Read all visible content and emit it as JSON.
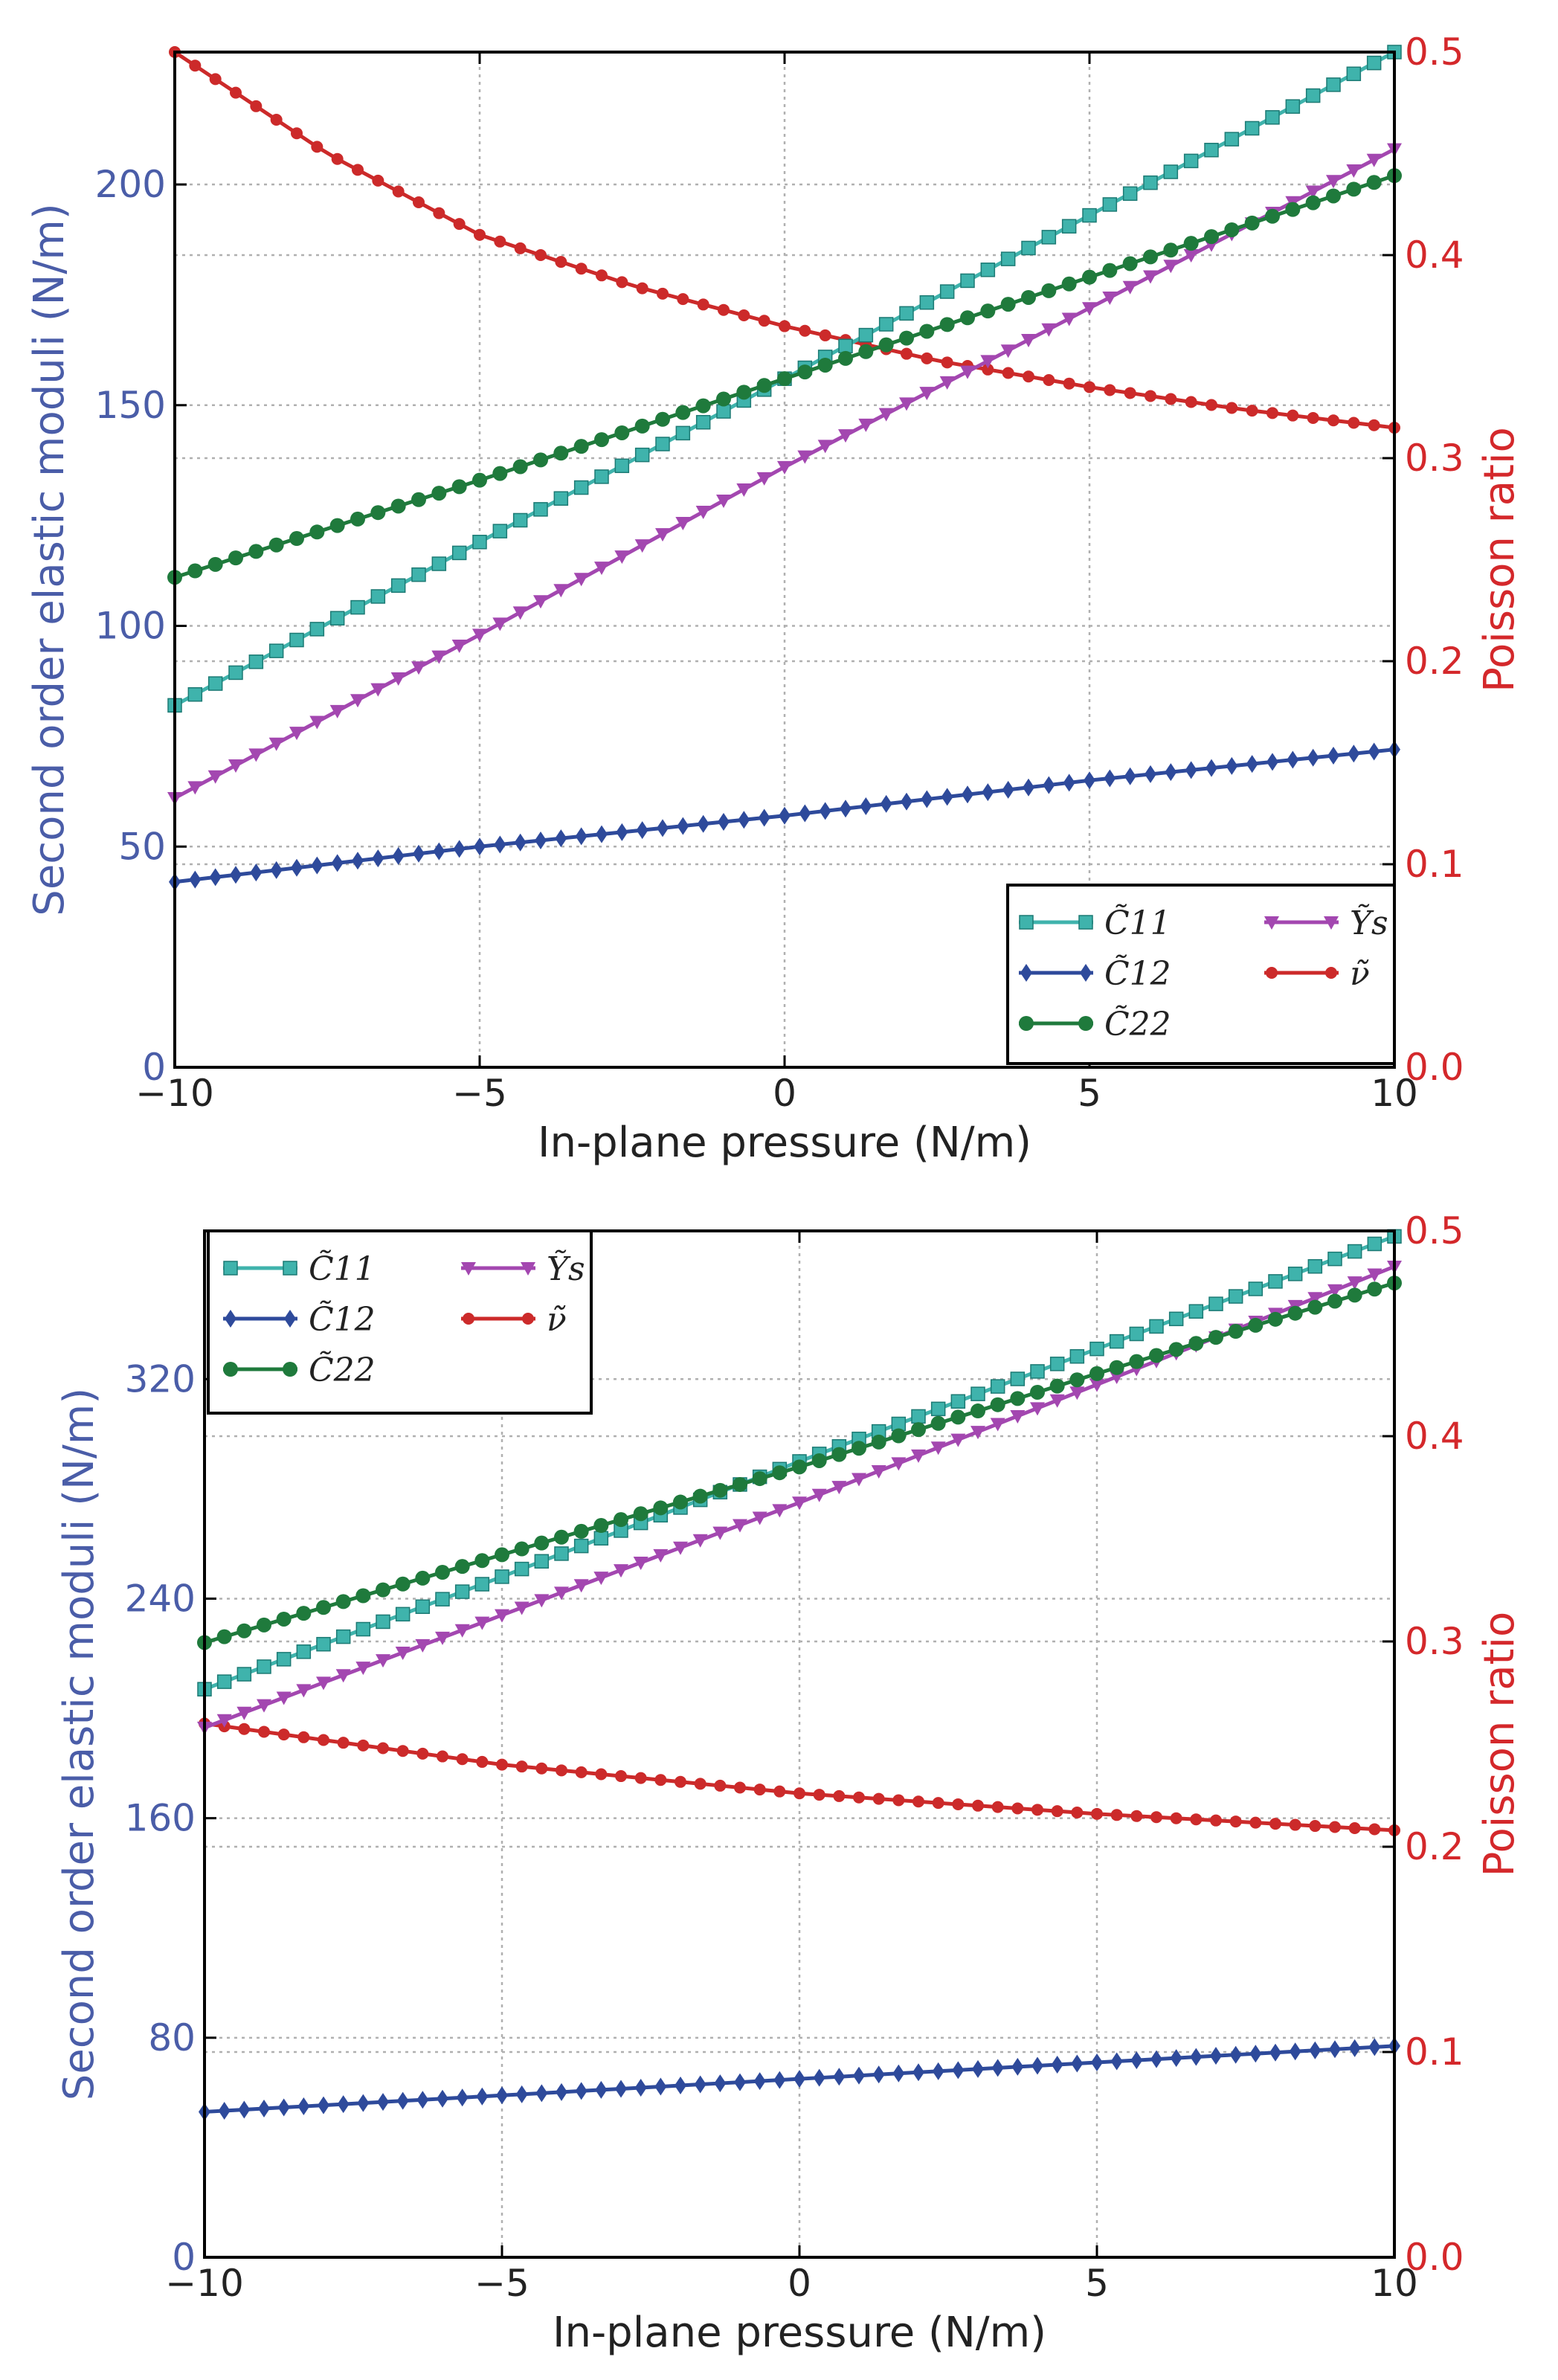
{
  "colors": {
    "left_axis": "#4a5da8",
    "right_axis": "#d4282b",
    "C11": "#3fb3ac",
    "C12": "#2e4a9b",
    "C22": "#1f7a3c",
    "Ys": "#a347b0",
    "nu": "#cc2a2a",
    "grid": "#b0b0b0"
  },
  "chart_data": [
    {
      "type": "line",
      "xlabel": "In-plane pressure (N/m)",
      "ylabel": "Second order elastic moduli (N/m)",
      "y2label": "Poisson ratio",
      "xlim": [
        -10,
        10
      ],
      "ylim": [
        0,
        230
      ],
      "y2lim": [
        0,
        0.5
      ],
      "xticks": [
        -10,
        -5,
        0,
        5,
        10
      ],
      "xtick_labels": [
        "−10",
        "−5",
        "0",
        "5",
        "10"
      ],
      "yticks": [
        0,
        50,
        100,
        150,
        200
      ],
      "yticks_labels": [
        "0",
        "50",
        "100",
        "150",
        "200"
      ],
      "y2ticks": [
        0,
        0.1,
        0.2,
        0.3,
        0.4,
        0.5
      ],
      "y2ticks_labels": [
        "0.0",
        "0.1",
        "0.2",
        "0.3",
        "0.4",
        "0.5"
      ],
      "grid": true,
      "legend_position": "lower-right",
      "series": [
        {
          "key": "C11",
          "name": "C̃11",
          "axis": "left",
          "marker": "square",
          "x": [
            -10,
            -5,
            0,
            5,
            10
          ],
          "values": [
            82,
            119,
            156,
            193,
            230
          ]
        },
        {
          "key": "C12",
          "name": "C̃12",
          "axis": "left",
          "marker": "diamond",
          "x": [
            -10,
            -5,
            0,
            5,
            10
          ],
          "values": [
            42,
            50,
            57,
            65,
            72
          ]
        },
        {
          "key": "C22",
          "name": "C̃22",
          "axis": "left",
          "marker": "circle",
          "x": [
            -10,
            -5,
            0,
            5,
            10
          ],
          "values": [
            111,
            133,
            156,
            179,
            202
          ]
        },
        {
          "key": "Ys",
          "name": "Ỹs",
          "axis": "left",
          "marker": "triangle-down",
          "x": [
            -10,
            -5,
            0,
            5,
            10
          ],
          "values": [
            61,
            98,
            136,
            172,
            208
          ]
        },
        {
          "key": "nu",
          "name": "ν̃",
          "axis": "right",
          "marker": "circle-small",
          "x": [
            -10,
            -7.5,
            -5,
            -2.5,
            0,
            2.5,
            5,
            7.5,
            10
          ],
          "values": [
            0.5,
            0.45,
            0.41,
            0.385,
            0.365,
            0.348,
            0.335,
            0.324,
            0.315
          ]
        }
      ]
    },
    {
      "type": "line",
      "xlabel": "In-plane pressure (N/m)",
      "ylabel": "Second order elastic moduli (N/m)",
      "y2label": "Poisson ratio",
      "xlim": [
        -10,
        10
      ],
      "ylim": [
        0,
        374
      ],
      "y2lim": [
        0,
        0.5
      ],
      "xticks": [
        -10,
        -5,
        0,
        5,
        10
      ],
      "xtick_labels": [
        "−10",
        "−5",
        "0",
        "5",
        "10"
      ],
      "yticks": [
        0,
        80,
        160,
        240,
        320
      ],
      "yticks_labels": [
        "0",
        "80",
        "160",
        "240",
        "320"
      ],
      "y2ticks": [
        0,
        0.1,
        0.2,
        0.3,
        0.4,
        0.5
      ],
      "y2ticks_labels": [
        "0.0",
        "0.1",
        "0.2",
        "0.3",
        "0.4",
        "0.5"
      ],
      "grid": true,
      "legend_position": "upper-left",
      "series": [
        {
          "key": "C11",
          "name": "C̃11",
          "axis": "left",
          "marker": "square",
          "x": [
            -10,
            -5,
            0,
            5,
            10
          ],
          "values": [
            207,
            248,
            290,
            331,
            372
          ]
        },
        {
          "key": "C12",
          "name": "C̃12",
          "axis": "left",
          "marker": "diamond",
          "x": [
            -10,
            -5,
            0,
            5,
            10
          ],
          "values": [
            53,
            59,
            65,
            71,
            77
          ]
        },
        {
          "key": "C22",
          "name": "C̃22",
          "axis": "left",
          "marker": "circle",
          "x": [
            -10,
            -5,
            0,
            5,
            10
          ],
          "values": [
            224,
            256,
            288,
            322,
            355
          ]
        },
        {
          "key": "Ys",
          "name": "Ỹs",
          "axis": "left",
          "marker": "triangle-down",
          "x": [
            -10,
            -5,
            0,
            5,
            10
          ],
          "values": [
            193,
            234,
            275,
            318,
            361
          ]
        },
        {
          "key": "nu",
          "name": "ν̃",
          "axis": "right",
          "marker": "circle-small",
          "x": [
            -10,
            -5,
            0,
            5,
            10
          ],
          "values": [
            0.26,
            0.24,
            0.226,
            0.216,
            0.208
          ]
        }
      ]
    }
  ]
}
